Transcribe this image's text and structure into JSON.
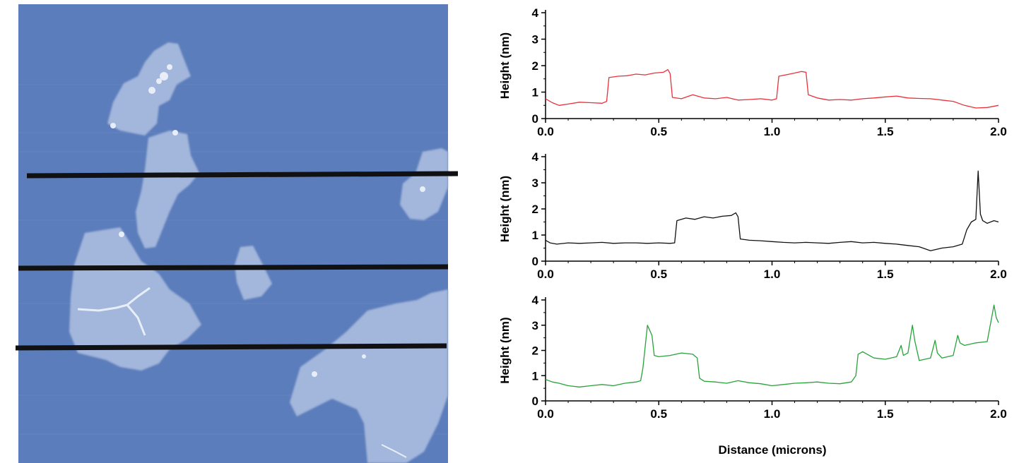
{
  "figure": {
    "xlabel": "Distance (microns)",
    "ylabel": "Height (nm)"
  },
  "colors": {
    "afm_background": "#5b7dbb",
    "afm_flake": "#a3b6dc",
    "afm_bright": "#e8eef8",
    "scan_line": "#111111",
    "axis": "#000000"
  },
  "chart_data": [
    {
      "type": "line",
      "xlabel": "",
      "ylabel": "Height (nm)",
      "xlim": [
        0,
        2.0
      ],
      "ylim": [
        0,
        4
      ],
      "x_ticks": [
        "0.0",
        "0.5",
        "1.0",
        "1.5",
        "2.0"
      ],
      "y_ticks": [
        "0",
        "1",
        "2",
        "3",
        "4"
      ],
      "series": [
        {
          "color": "#e8313a",
          "x": [
            0.0,
            0.03,
            0.06,
            0.1,
            0.15,
            0.2,
            0.25,
            0.27,
            0.28,
            0.32,
            0.36,
            0.4,
            0.44,
            0.48,
            0.52,
            0.54,
            0.55,
            0.56,
            0.6,
            0.65,
            0.7,
            0.75,
            0.8,
            0.85,
            0.9,
            0.95,
            1.0,
            1.02,
            1.03,
            1.06,
            1.1,
            1.13,
            1.15,
            1.16,
            1.2,
            1.25,
            1.3,
            1.35,
            1.4,
            1.45,
            1.5,
            1.55,
            1.6,
            1.65,
            1.7,
            1.75,
            1.8,
            1.85,
            1.9,
            1.95,
            2.0
          ],
          "y": [
            0.75,
            0.6,
            0.5,
            0.55,
            0.62,
            0.6,
            0.58,
            0.65,
            1.55,
            1.6,
            1.62,
            1.68,
            1.65,
            1.72,
            1.75,
            1.85,
            1.7,
            0.8,
            0.75,
            0.9,
            0.78,
            0.75,
            0.8,
            0.7,
            0.72,
            0.75,
            0.7,
            0.75,
            1.6,
            1.65,
            1.72,
            1.78,
            1.75,
            0.9,
            0.78,
            0.7,
            0.72,
            0.7,
            0.75,
            0.78,
            0.82,
            0.85,
            0.78,
            0.76,
            0.75,
            0.7,
            0.65,
            0.5,
            0.4,
            0.42,
            0.5
          ]
        }
      ]
    },
    {
      "type": "line",
      "xlabel": "",
      "ylabel": "Height (nm)",
      "xlim": [
        0,
        2.0
      ],
      "ylim": [
        0,
        4
      ],
      "x_ticks": [
        "0.0",
        "0.5",
        "1.0",
        "1.5",
        "2.0"
      ],
      "y_ticks": [
        "0",
        "1",
        "2",
        "3",
        "4"
      ],
      "series": [
        {
          "color": "#111111",
          "x": [
            0.0,
            0.02,
            0.05,
            0.1,
            0.15,
            0.2,
            0.25,
            0.3,
            0.35,
            0.4,
            0.45,
            0.5,
            0.55,
            0.57,
            0.58,
            0.62,
            0.66,
            0.7,
            0.74,
            0.78,
            0.82,
            0.84,
            0.85,
            0.86,
            0.9,
            0.95,
            1.0,
            1.05,
            1.1,
            1.15,
            1.2,
            1.25,
            1.3,
            1.35,
            1.4,
            1.45,
            1.5,
            1.55,
            1.6,
            1.65,
            1.7,
            1.75,
            1.8,
            1.84,
            1.86,
            1.88,
            1.9,
            1.91,
            1.92,
            1.93,
            1.95,
            1.98,
            2.0
          ],
          "y": [
            0.8,
            0.7,
            0.65,
            0.7,
            0.68,
            0.7,
            0.72,
            0.68,
            0.7,
            0.7,
            0.68,
            0.7,
            0.68,
            0.7,
            1.55,
            1.65,
            1.6,
            1.7,
            1.65,
            1.72,
            1.75,
            1.85,
            1.7,
            0.85,
            0.8,
            0.78,
            0.75,
            0.72,
            0.7,
            0.72,
            0.7,
            0.68,
            0.72,
            0.75,
            0.7,
            0.72,
            0.68,
            0.65,
            0.6,
            0.55,
            0.4,
            0.5,
            0.55,
            0.65,
            1.2,
            1.5,
            1.6,
            3.45,
            1.8,
            1.55,
            1.45,
            1.55,
            1.5
          ]
        }
      ]
    },
    {
      "type": "line",
      "xlabel": "Distance (microns)",
      "ylabel": "Height (nm)",
      "xlim": [
        0,
        2.0
      ],
      "ylim": [
        0,
        4
      ],
      "x_ticks": [
        "0.0",
        "0.5",
        "1.0",
        "1.5",
        "2.0"
      ],
      "y_ticks": [
        "0",
        "1",
        "2",
        "3",
        "4"
      ],
      "series": [
        {
          "color": "#27a33a",
          "x": [
            0.0,
            0.03,
            0.06,
            0.1,
            0.15,
            0.2,
            0.25,
            0.3,
            0.35,
            0.4,
            0.42,
            0.43,
            0.45,
            0.47,
            0.48,
            0.5,
            0.55,
            0.6,
            0.65,
            0.67,
            0.68,
            0.7,
            0.75,
            0.8,
            0.85,
            0.9,
            0.95,
            1.0,
            1.05,
            1.1,
            1.15,
            1.2,
            1.25,
            1.3,
            1.35,
            1.37,
            1.38,
            1.4,
            1.45,
            1.5,
            1.55,
            1.57,
            1.58,
            1.6,
            1.62,
            1.63,
            1.65,
            1.7,
            1.72,
            1.73,
            1.75,
            1.8,
            1.82,
            1.83,
            1.85,
            1.9,
            1.95,
            1.98,
            1.99,
            2.0
          ],
          "y": [
            0.85,
            0.75,
            0.7,
            0.6,
            0.55,
            0.6,
            0.65,
            0.6,
            0.7,
            0.75,
            0.8,
            1.3,
            3.0,
            2.6,
            1.8,
            1.75,
            1.8,
            1.9,
            1.85,
            1.7,
            0.9,
            0.78,
            0.75,
            0.7,
            0.8,
            0.72,
            0.68,
            0.6,
            0.65,
            0.7,
            0.72,
            0.75,
            0.7,
            0.68,
            0.75,
            1.0,
            1.85,
            1.95,
            1.7,
            1.65,
            1.75,
            2.2,
            1.8,
            1.9,
            3.0,
            2.4,
            1.6,
            1.7,
            2.4,
            1.9,
            1.7,
            1.8,
            2.6,
            2.3,
            2.2,
            2.3,
            2.35,
            3.8,
            3.3,
            3.1
          ]
        }
      ]
    }
  ]
}
